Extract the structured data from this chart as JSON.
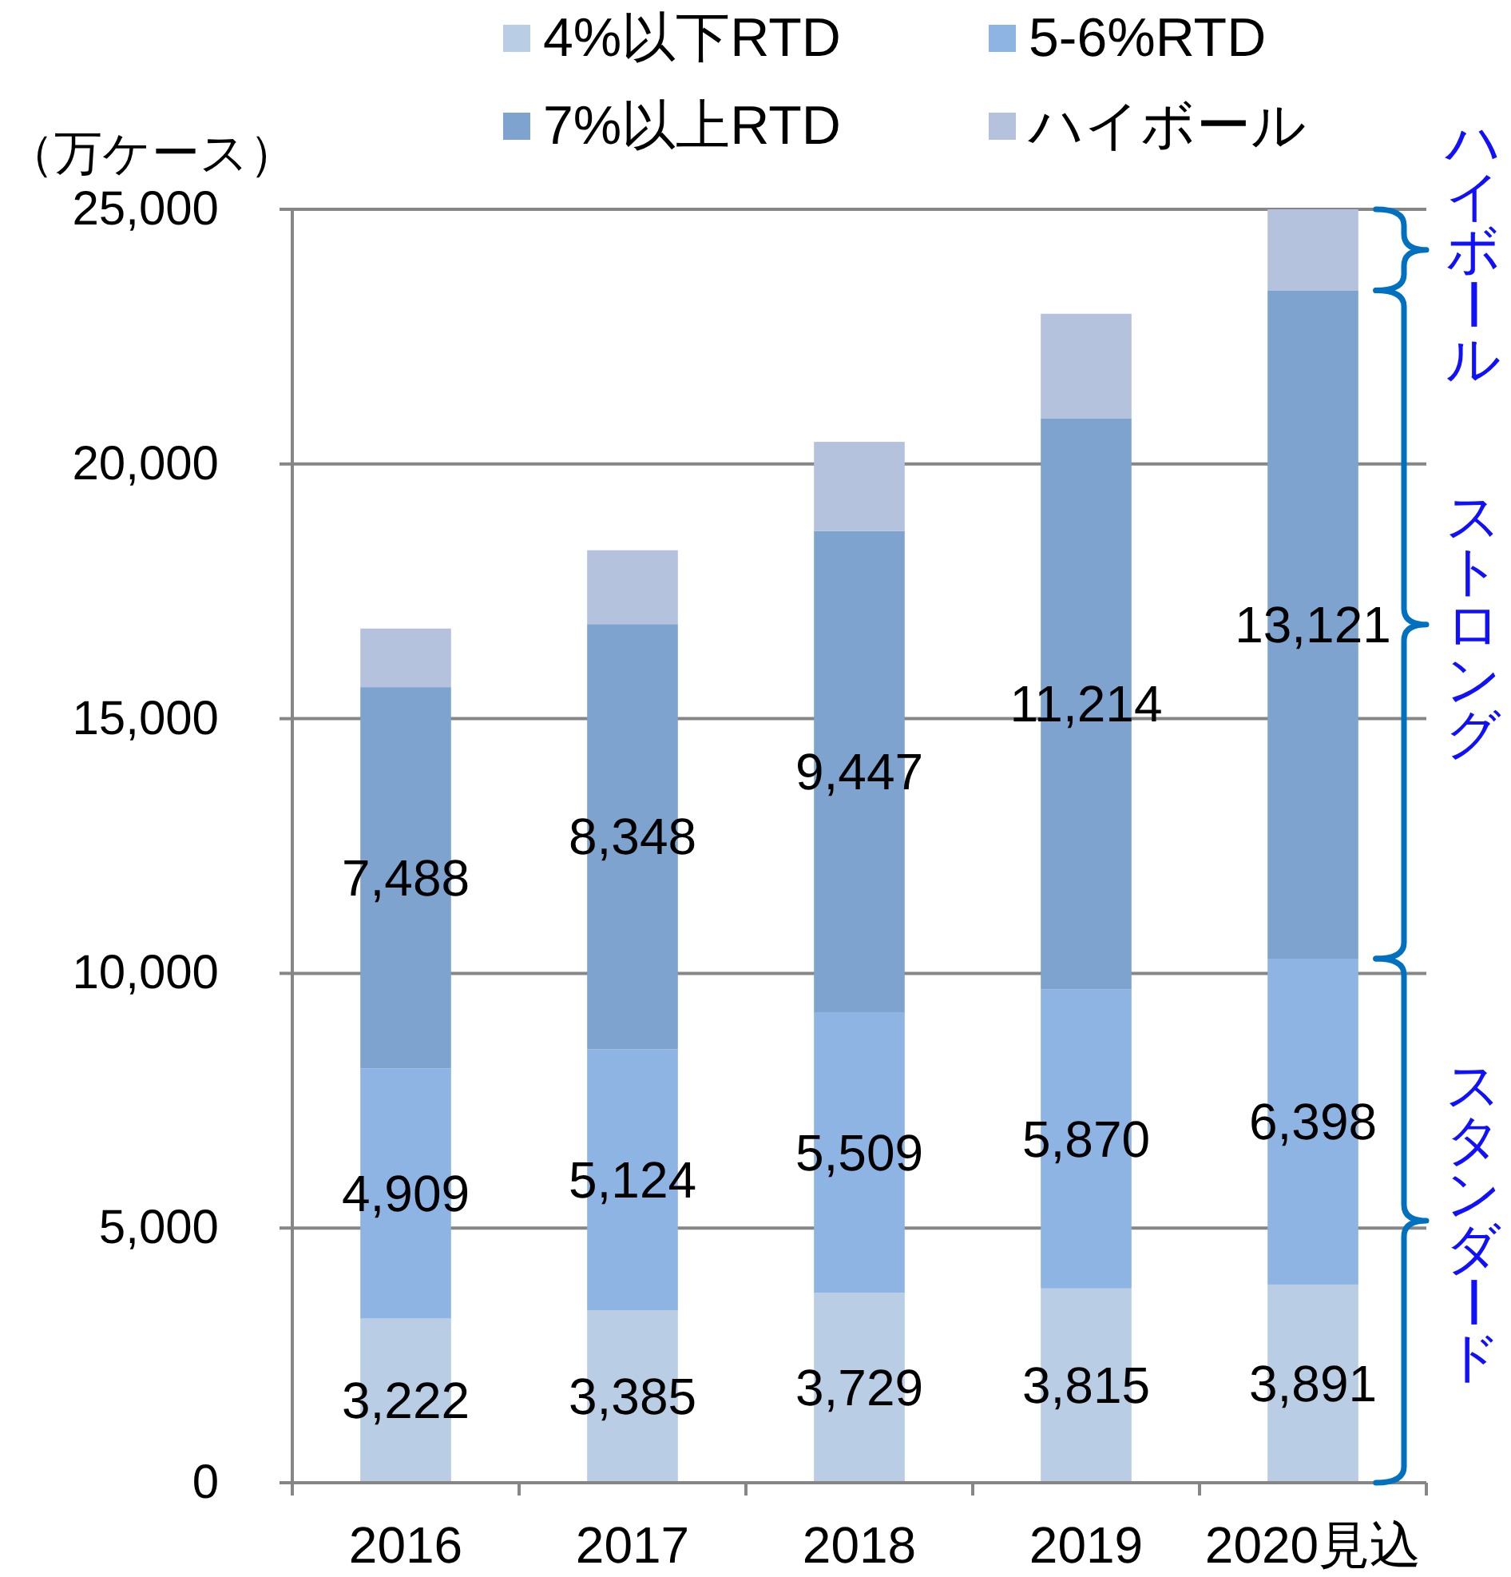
{
  "chart_data": {
    "type": "bar",
    "stacked": true,
    "ylabel": "（万ケース）",
    "categories": [
      "2016",
      "2017",
      "2018",
      "2019",
      "2020見込"
    ],
    "series": [
      {
        "name": "4%以下RTD",
        "color": "#b9cde5",
        "values": [
          3222,
          3385,
          3729,
          3815,
          3891
        ],
        "value_labels": [
          "3,222",
          "3,385",
          "3,729",
          "3,815",
          "3,891"
        ]
      },
      {
        "name": "5-6%RTD",
        "color": "#8eb4e3",
        "values": [
          4909,
          5124,
          5509,
          5870,
          6398
        ],
        "value_labels": [
          "4,909",
          "5,124",
          "5,509",
          "5,870",
          "6,398"
        ]
      },
      {
        "name": "7%以上RTD",
        "color": "#7ea3ce",
        "values": [
          7488,
          8348,
          9447,
          11214,
          13121
        ],
        "value_labels": [
          "7,488",
          "8,348",
          "9,447",
          "11,214",
          "13,121"
        ]
      },
      {
        "name": "ハイボール",
        "color": "#b4c2de",
        "values": [
          1150,
          1450,
          1750,
          2050,
          1590
        ]
      }
    ],
    "ylim": [
      0,
      25000
    ],
    "yticks": [
      0,
      {
        "value": 5000,
        "label": "5,000"
      },
      {
        "value": 10000,
        "label": "10,000"
      },
      {
        "value": 15000,
        "label": "15,000"
      },
      {
        "value": 20000,
        "label": "20,000"
      },
      {
        "value": 25000,
        "label": "25,000"
      }
    ],
    "grid": "y",
    "legend": "top",
    "annotations": [
      "ハイボール",
      "ストロング",
      "スタンダード"
    ]
  }
}
